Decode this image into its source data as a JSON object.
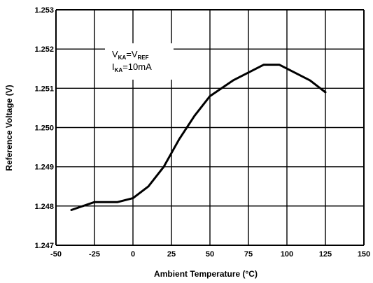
{
  "chart_data": {
    "type": "line",
    "title": "",
    "xlabel": "Ambient Temperature (°C)",
    "ylabel": "Reference Voltage (V)",
    "xlim": [
      -50,
      150
    ],
    "ylim": [
      1.247,
      1.253
    ],
    "x_ticks": [
      -50,
      -25,
      0,
      25,
      50,
      75,
      100,
      125,
      150
    ],
    "x_tick_labels": [
      "-50",
      "-25",
      "0",
      "25",
      "50",
      "75",
      "100",
      "125",
      "150"
    ],
    "y_ticks": [
      1.247,
      1.248,
      1.249,
      1.25,
      1.251,
      1.252,
      1.253
    ],
    "y_tick_labels": [
      "1.247",
      "1.248",
      "1.249",
      "1.250",
      "1.251",
      "1.252",
      "1.253"
    ],
    "grid": true,
    "annotation": {
      "line1": {
        "v1": "V",
        "s1": "KA",
        "eq": "=V",
        "s2": "REF"
      },
      "line2": {
        "v1": "I",
        "s1": "KA",
        "rest": "=10mA"
      }
    },
    "series": [
      {
        "x": [
          -40,
          -25,
          -10,
          0,
          10,
          20,
          30,
          40,
          50,
          65,
          85,
          95,
          115,
          125
        ],
        "y": [
          1.2479,
          1.2481,
          1.2481,
          1.2482,
          1.2485,
          1.249,
          1.2497,
          1.2503,
          1.2508,
          1.2512,
          1.2516,
          1.2516,
          1.2512,
          1.2509
        ]
      }
    ],
    "colors": {
      "line": "#000000",
      "grid": "#000000",
      "background": "#ffffff"
    }
  }
}
